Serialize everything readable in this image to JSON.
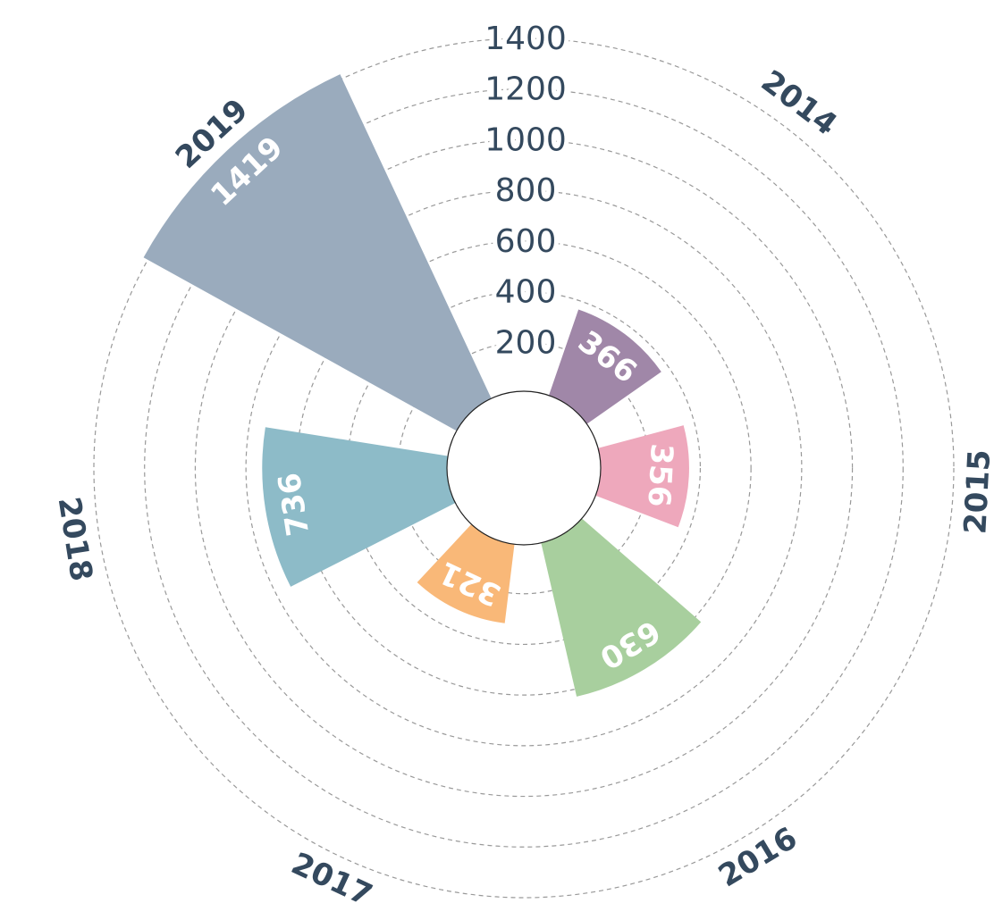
{
  "chart_data": {
    "type": "polar-bar",
    "categories": [
      "2014",
      "2015",
      "2016",
      "2017",
      "2018",
      "2019"
    ],
    "values": [
      366,
      356,
      630,
      321,
      736,
      1419
    ],
    "colors": [
      "#a087a8",
      "#eea8bc",
      "#a8cf9e",
      "#f9b878",
      "#8dbbc8",
      "#9aabbd"
    ],
    "ylim": [
      0,
      1400
    ],
    "yticks": [
      200,
      400,
      600,
      800,
      1000,
      1200,
      1400
    ],
    "grid": true
  }
}
